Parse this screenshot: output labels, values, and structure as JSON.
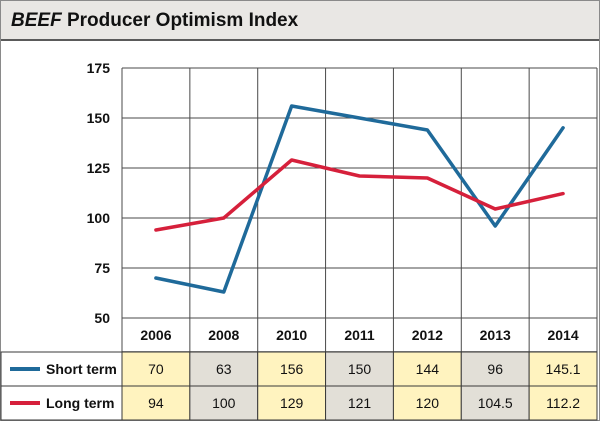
{
  "title": {
    "italic": "BEEF",
    "rest": "Producer Optimism Index"
  },
  "chart_data": {
    "type": "line",
    "title": "BEEF Producer Optimism Index",
    "categories": [
      "2006",
      "2008",
      "2010",
      "2011",
      "2012",
      "2013",
      "2014"
    ],
    "ylim": [
      50,
      175
    ],
    "yticks": [
      50,
      75,
      100,
      125,
      150,
      175
    ],
    "series": [
      {
        "name": "Short term",
        "color": "#1f6a9a",
        "values": [
          70,
          63,
          156,
          150,
          144,
          96,
          145.1
        ],
        "labels": [
          "70",
          "63",
          "156",
          "150",
          "144",
          "96",
          "145.1"
        ]
      },
      {
        "name": "Long term",
        "color": "#d6203b",
        "values": [
          94,
          100,
          129,
          121,
          120,
          104.5,
          112.2
        ],
        "labels": [
          "94",
          "100",
          "129",
          "121",
          "120",
          "104.5",
          "112.2"
        ]
      }
    ],
    "cell_colors": [
      "#fff3bf",
      "#e2dfd7"
    ]
  }
}
